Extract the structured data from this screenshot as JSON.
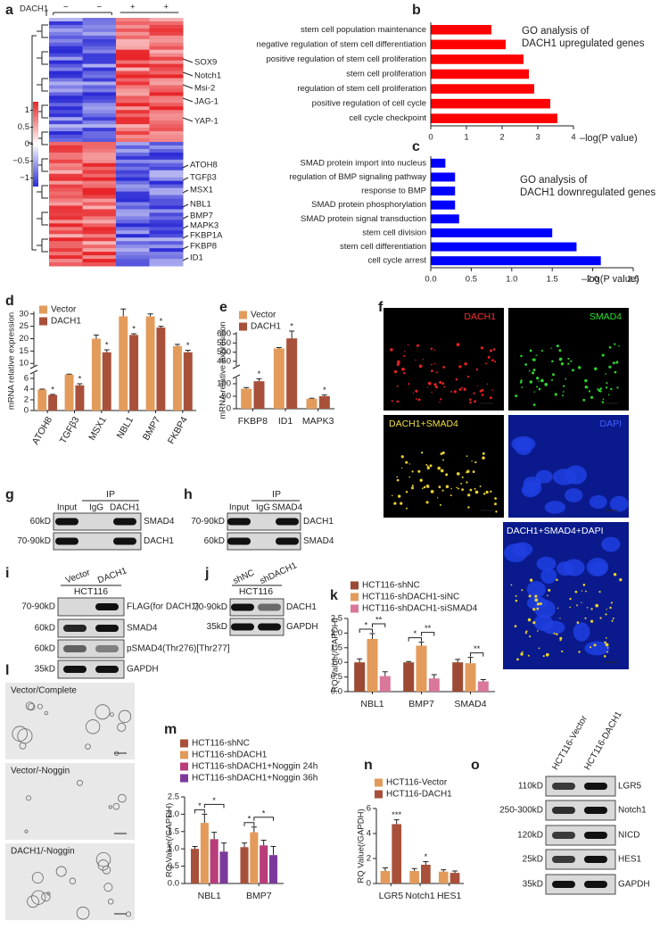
{
  "panel_labels": [
    "a",
    "b",
    "c",
    "d",
    "e",
    "f",
    "g",
    "h",
    "i",
    "j",
    "k",
    "l",
    "m",
    "n",
    "o"
  ],
  "heatmap": {
    "condition_label": "DACH1",
    "columns": [
      "−",
      "−",
      "+",
      "+"
    ],
    "clim": [
      -1.25,
      1.25
    ],
    "colorbar_ticks": [
      1,
      0.5,
      0,
      {
        "value": -0.5,
        "label": "−0.5"
      },
      {
        "value": -1,
        "label": "−1"
      }
    ],
    "upregulated_genes": [
      "SOX9",
      "Notch1",
      "Msi-2",
      "JAG-1",
      "YAP-1"
    ],
    "downregulated_genes": [
      "ATOH8",
      "TGFβ3",
      "MSX1",
      "NBL1",
      "BMP7",
      "MAPK3",
      "FKBP1A",
      "FKBP8",
      "ID1"
    ]
  },
  "chart_data": [
    {
      "type": "bar",
      "orientation": "horizontal",
      "title": [
        "GO analysis of",
        "DACH1 upregulated genes"
      ],
      "xlabel": "–log(P value)",
      "categories": [
        "stem cell population maintenance",
        "negative regulation of stem cell differentiation",
        "positive regulation of stem cell proliferation",
        "stem cell proliferation",
        "regulation of stem cell proliferation",
        "positive regulation of cell cycle",
        "cell cycle checkpoint"
      ],
      "values": [
        1.7,
        2.1,
        2.6,
        2.75,
        2.9,
        3.35,
        3.55
      ],
      "color": "#ff0000",
      "xlim": [
        0,
        4
      ],
      "xticks": [
        0,
        1,
        2,
        3,
        4
      ]
    },
    {
      "type": "bar",
      "orientation": "horizontal",
      "title": [
        "GO analysis of",
        "DACH1 downregulated genes"
      ],
      "xlabel": "–log(P value)",
      "categories": [
        "SMAD protein import into nucleus",
        "regulation of BMP signaling pathway",
        "response to BMP",
        "SMAD protein phosphorylation",
        "SMAD protein signal transduction",
        "stem cell division",
        "stem cell differentiation",
        "cell cycle arrest"
      ],
      "values": [
        0.18,
        0.3,
        0.3,
        0.3,
        0.35,
        1.5,
        1.8,
        2.1
      ],
      "color": "#0000ff",
      "xlim": [
        0,
        2.5
      ],
      "xticks": [
        {
          "value": 0,
          "label": "0.0"
        },
        0.5,
        {
          "value": 1,
          "label": "1.0"
        },
        1.5,
        {
          "value": 2,
          "label": "2.0"
        },
        2.5
      ]
    },
    {
      "type": "bar",
      "ylabel": "mRNA relative expression",
      "categories": [
        "ATOH8",
        "TGFβ3",
        "MSX1",
        "NBL1",
        "BMP7",
        "FKBP4"
      ],
      "series": [
        {
          "name": "Vector",
          "color": "#e39b5b",
          "values": [
            3.9,
            6.7,
            20,
            29,
            29,
            17
          ],
          "errors": [
            0.1,
            0.1,
            1.5,
            3,
            1,
            0.7
          ],
          "significance": [
            null,
            null,
            null,
            null,
            null,
            null
          ]
        },
        {
          "name": "DACH1",
          "color": "#a9503a",
          "values": [
            2.9,
            4.7,
            14.5,
            21.5,
            24.5,
            14.5
          ],
          "errors": [
            0.1,
            0.3,
            1,
            0.5,
            0.5,
            0.8
          ],
          "significance": [
            "*",
            "*",
            "*",
            "*",
            "*",
            "*"
          ]
        }
      ],
      "ylim": [
        0,
        31
      ],
      "ybreak": [
        7,
        9
      ],
      "yticks": [
        0,
        2,
        4,
        6,
        10,
        15,
        20,
        25,
        30
      ]
    },
    {
      "type": "bar",
      "ylabel": "mRNA relative expression",
      "categories": [
        "FKBP8",
        "ID1",
        "MAPK3"
      ],
      "series": [
        {
          "name": "Vector",
          "color": "#e39b5b",
          "values": [
            80,
            520,
            40
          ],
          "errors": [
            5,
            5,
            2
          ],
          "significance": [
            null,
            null,
            null
          ]
        },
        {
          "name": "DACH1",
          "color": "#a9503a",
          "values": [
            110,
            575,
            50
          ],
          "errors": [
            10,
            40,
            5
          ],
          "significance": [
            "*",
            "*",
            "*"
          ]
        }
      ],
      "ylim": [
        0,
        610
      ],
      "ybreak": [
        125,
        425
      ],
      "yticks": [
        0,
        50,
        100,
        450,
        500,
        550,
        600
      ]
    },
    {
      "type": "bar",
      "ylabel": "RQ Value(/GAPDH)",
      "categories": [
        "NBL1",
        "BMP7",
        "SMAD4"
      ],
      "series": [
        {
          "name": "HCT116-shNC",
          "color": "#9c4a33",
          "values": [
            1.0,
            1.0,
            1.0
          ],
          "errors": [
            0.12,
            0.03,
            0.1
          ]
        },
        {
          "name": "HCT116-shDACH1-siNC",
          "color": "#e39b5b",
          "values": [
            1.8,
            1.57,
            0.97
          ],
          "errors": [
            0.18,
            0.12,
            0.2
          ]
        },
        {
          "name": "HCT116-shDACH1-siSMAD4",
          "color": "#d9779a",
          "values": [
            0.53,
            0.45,
            0.35
          ],
          "errors": [
            0.15,
            0.13,
            0.06
          ]
        }
      ],
      "brackets": [
        {
          "category": "NBL1",
          "from": "HCT116-shNC",
          "to": "HCT116-shDACH1-siNC",
          "text": "*"
        },
        {
          "category": "NBL1",
          "from": "HCT116-shDACH1-siNC",
          "to": "HCT116-shDACH1-siSMAD4",
          "text": "**"
        },
        {
          "category": "BMP7",
          "from": "HCT116-shNC",
          "to": "HCT116-shDACH1-siNC",
          "text": "*"
        },
        {
          "category": "BMP7",
          "from": "HCT116-shDACH1-siNC",
          "to": "HCT116-shDACH1-siSMAD4",
          "text": "**"
        },
        {
          "category": "SMAD4",
          "from": "HCT116-shDACH1-siNC",
          "to": "HCT116-shDACH1-siSMAD4",
          "text": "**"
        }
      ],
      "ylim": [
        0,
        2.5
      ],
      "yticks": [
        {
          "value": 0,
          "label": "0.0"
        },
        0.5,
        {
          "value": 1,
          "label": "1.0"
        },
        1.5,
        {
          "value": 2,
          "label": "2.0"
        },
        2.5
      ]
    },
    {
      "type": "bar",
      "ylabel": "RQ Value(/GAPDH)",
      "categories": [
        "NBL1",
        "BMP7"
      ],
      "series": [
        {
          "name": "HCT116-shNC",
          "color": "#a9503a",
          "values": [
            1.0,
            1.05
          ],
          "errors": [
            0.07,
            0.12
          ]
        },
        {
          "name": "HCT116-shDACH1",
          "color": "#e39b5b",
          "values": [
            1.75,
            1.48
          ],
          "errors": [
            0.25,
            0.15
          ]
        },
        {
          "name": "HCT116-shDACH1+Noggin 24h",
          "color": "#b83d7a",
          "values": [
            1.28,
            1.1
          ],
          "errors": [
            0.2,
            0.15
          ]
        },
        {
          "name": "HCT116-shDACH1+Noggin 36h",
          "color": "#7b3a9b",
          "values": [
            0.92,
            0.82
          ],
          "errors": [
            0.25,
            0.25
          ]
        }
      ],
      "brackets": [
        {
          "category": "NBL1",
          "from": "HCT116-shNC",
          "to": "HCT116-shDACH1",
          "text": "*"
        },
        {
          "category": "NBL1",
          "from": "HCT116-shDACH1",
          "to": "HCT116-shDACH1+Noggin 36h",
          "text": "*"
        },
        {
          "category": "BMP7",
          "from": "HCT116-shNC",
          "to": "HCT116-shDACH1",
          "text": "*"
        },
        {
          "category": "BMP7",
          "from": "HCT116-shDACH1",
          "to": "HCT116-shDACH1+Noggin 36h",
          "text": "*"
        }
      ],
      "ylim": [
        0,
        2.5
      ],
      "yticks": [
        {
          "value": 0,
          "label": "0.0"
        },
        0.5,
        {
          "value": 1,
          "label": "1.0"
        },
        1.5,
        {
          "value": 2,
          "label": "2.0"
        },
        2.5
      ]
    },
    {
      "type": "bar",
      "ylabel": "RQ Value(/GAPDH)",
      "categories": [
        "LGR5",
        "Notch1",
        "HES1"
      ],
      "series": [
        {
          "name": "HCT116-Vector",
          "color": "#e39b5b",
          "values": [
            1.0,
            1.0,
            0.95
          ],
          "errors": [
            0.25,
            0.2,
            0.15
          ],
          "significance": [
            null,
            null,
            null
          ]
        },
        {
          "name": "HCT116-DACH1",
          "color": "#a9503a",
          "values": [
            4.75,
            1.5,
            0.85
          ],
          "errors": [
            0.35,
            0.25,
            0.15
          ],
          "significance": [
            "***",
            "*",
            null
          ]
        }
      ],
      "ylim": [
        0,
        6
      ],
      "yticks": [
        0,
        2,
        4,
        6
      ]
    }
  ],
  "blots": [
    {
      "group_label": "IP",
      "lanes": [
        "Input",
        "IgG",
        "DACH1"
      ],
      "rows": [
        {
          "size": "60kD",
          "protein": "SMAD4"
        },
        {
          "size": "70-90kD",
          "protein": "DACH1"
        }
      ]
    },
    {
      "group_label": "IP",
      "lanes": [
        "Input",
        "IgG",
        "SMAD4"
      ],
      "rows": [
        {
          "size": "70-90kD",
          "protein": "DACH1"
        },
        {
          "size": "60kD",
          "protein": "SMAD4"
        }
      ]
    },
    {
      "group_label": "HCT116",
      "lanes": [
        "Vector",
        "DACH1"
      ],
      "rows": [
        {
          "size": "70-90kD",
          "protein": "FLAG(for DACH1)"
        },
        {
          "size": "60kD",
          "protein": "SMAD4"
        },
        {
          "size": "60kD",
          "protein": "pSMAD4(Thr276)[Thr277]"
        },
        {
          "size": "35kD",
          "protein": "GAPDH"
        }
      ]
    },
    {
      "group_label": "HCT116",
      "lanes": [
        "shNC",
        "shDACH1"
      ],
      "rows": [
        {
          "size": "70-90kD",
          "protein": "DACH1"
        },
        {
          "size": "35kD",
          "protein": "GAPDH"
        }
      ]
    },
    {
      "lanes": [
        "HCT116-Vector",
        "HCT116-DACH1"
      ],
      "rows": [
        {
          "size": "110kD",
          "protein": "LGR5"
        },
        {
          "size": "250-300kD",
          "protein": "Notch1"
        },
        {
          "size": "120kD",
          "protein": "NICD"
        },
        {
          "size": "25kD",
          "protein": "HES1"
        },
        {
          "size": "35kD",
          "protein": "GAPDH"
        }
      ]
    }
  ],
  "immunofluorescence": {
    "labels": [
      "DACH1",
      "SMAD4",
      "DACH1+SMAD4",
      "DAPI",
      "DACH1+SMAD4+DAPI"
    ]
  },
  "organoids": {
    "labels": [
      "Vector/Complete",
      "Vector/-Noggin",
      "DACH1/-Noggin"
    ]
  }
}
